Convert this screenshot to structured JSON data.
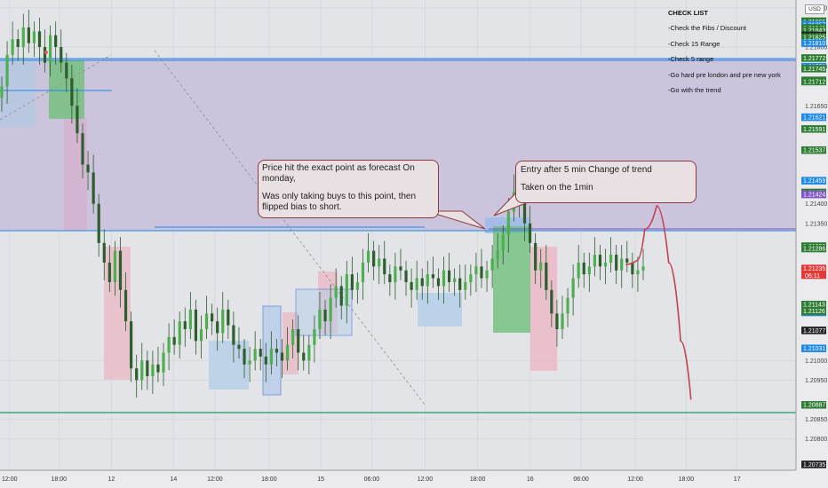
{
  "chart": {
    "currency": "USD",
    "colors": {
      "background": "#e3e4e8",
      "bullish": "#26a69a",
      "bearish": "#ef5350",
      "candle": "#3a7a3a",
      "forecast": "#c0424f",
      "level_line": "#1e88e5",
      "support_line": "#1b9a6b",
      "zone": "#c5bcd8",
      "ask_box": "#a8c7e6",
      "bid_box": "#e6a9b4"
    }
  },
  "checklist": {
    "title": "CHECK LIST",
    "items": [
      "-Check the Fibs / Discount",
      "-Check 15 Range",
      "-Check 5 range",
      "-Go hard pre london and pre new york",
      "-Go with the trend"
    ]
  },
  "callouts": {
    "left": {
      "line1": "Price hit the exact point as forecast On monday,",
      "line2": "Was only taking buys to this point,  then flipped bias to short."
    },
    "right": {
      "line1": "Entry after 5 min Change of trend",
      "line2": "Taken on the 1min"
    }
  },
  "chart_data": {
    "type": "candlestick",
    "y_range": [
      1.2072,
      1.2192
    ],
    "price_ticks": [
      1.208,
      1.2085,
      1.2095,
      1.21,
      1.2135,
      1.214,
      1.2165,
      1.2175,
      1.218,
      1.219
    ],
    "price_labels": [
      {
        "value": "1.21866",
        "price": 1.21866,
        "color": "#2e7d32"
      },
      {
        "value": "1.21865",
        "price": 1.21865,
        "color": "#2e7d32"
      },
      {
        "value": "1.21857",
        "price": 1.21857,
        "color": "#1e88e5"
      },
      {
        "value": "1.21849",
        "price": 1.21849,
        "color": "#2e7d32"
      },
      {
        "value": "1.21843",
        "price": 1.21843,
        "color": "#2e7d32"
      },
      {
        "value": "1.21830",
        "price": 1.2183,
        "color": "#222222"
      },
      {
        "value": "1.21825",
        "price": 1.21825,
        "color": "#2e7d32"
      },
      {
        "value": "1.21810",
        "price": 1.2181,
        "color": "#1e88e5"
      },
      {
        "value": "1.21772",
        "price": 1.21772,
        "color": "#2e7d32"
      },
      {
        "value": "1.21750",
        "price": 1.2175,
        "color": "#1e88e5"
      },
      {
        "value": "1.21745",
        "price": 1.21745,
        "color": "#2e7d32"
      },
      {
        "value": "1.21715",
        "price": 1.21715,
        "color": "#2e7d32"
      },
      {
        "value": "1.21712",
        "price": 1.21712,
        "color": "#2e7d32"
      },
      {
        "value": "1.21621",
        "price": 1.21621,
        "color": "#1e88e5"
      },
      {
        "value": "1.21591",
        "price": 1.21591,
        "color": "#2e7d32"
      },
      {
        "value": "1.21537",
        "price": 1.21537,
        "color": "#2e7d32"
      },
      {
        "value": "1.21459",
        "price": 1.21459,
        "color": "#1e88e5"
      },
      {
        "value": "1.21429",
        "price": 1.21429,
        "color": "#2e7d32"
      },
      {
        "value": "1.21424",
        "price": 1.21424,
        "color": "#7e57c2"
      },
      {
        "value": "1.21292",
        "price": 1.21292,
        "color": "#2e7d32"
      },
      {
        "value": "1.21286",
        "price": 1.21286,
        "color": "#2e7d32"
      },
      {
        "value": "1.21235",
        "price": 1.21235,
        "color": "#e53935",
        "sub": "06:11"
      },
      {
        "value": "1.21143",
        "price": 1.21143,
        "color": "#2e7d32"
      },
      {
        "value": "1.21123",
        "price": 1.21123,
        "color": "#1e88e5"
      },
      {
        "value": "1.21126",
        "price": 1.21126,
        "color": "#2e7d32"
      },
      {
        "value": "1.21077",
        "price": 1.21077,
        "color": "#222222"
      },
      {
        "value": "1.21031",
        "price": 1.21031,
        "color": "#1e88e5"
      },
      {
        "value": "1.20887",
        "price": 1.20887,
        "color": "#2e7d32"
      },
      {
        "value": "1.20735",
        "price": 1.20735,
        "color": "#222222"
      }
    ],
    "x_ticks": [
      {
        "label": "12:00",
        "t": 0.012
      },
      {
        "label": "18:00",
        "t": 0.074
      },
      {
        "label": "12",
        "t": 0.14
      },
      {
        "label": "14",
        "t": 0.218
      },
      {
        "label": "12:00",
        "t": 0.27
      },
      {
        "label": "18:00",
        "t": 0.338
      },
      {
        "label": "15",
        "t": 0.403
      },
      {
        "label": "06:00",
        "t": 0.467
      },
      {
        "label": "12:00",
        "t": 0.534
      },
      {
        "label": "18:00",
        "t": 0.6
      },
      {
        "label": "16",
        "t": 0.666
      },
      {
        "label": "06:00",
        "t": 0.73
      },
      {
        "label": "12:00",
        "t": 0.798
      },
      {
        "label": "18:00",
        "t": 0.862
      },
      {
        "label": "17",
        "t": 0.926
      }
    ],
    "levels": [
      {
        "price": 1.2184,
        "kind": "resistance"
      },
      {
        "price": 1.21424,
        "kind": "resistance"
      },
      {
        "price": 1.20887,
        "kind": "support"
      },
      {
        "price": 1.2145,
        "kind": "short_line"
      }
    ],
    "closes": [
      1.217,
      1.2178,
      1.2182,
      1.218,
      1.2185,
      1.2181,
      1.2184,
      1.218,
      1.2176,
      1.2183,
      1.218,
      1.2176,
      1.2172,
      1.2165,
      1.2158,
      1.215,
      1.2148,
      1.214,
      1.213,
      1.2125,
      1.212,
      1.2128,
      1.2118,
      1.211,
      1.2098,
      1.2095,
      1.21,
      1.2096,
      1.2099,
      1.2097,
      1.2102,
      1.2106,
      1.2104,
      1.211,
      1.2108,
      1.2113,
      1.2105,
      1.2108,
      1.2112,
      1.211,
      1.2107,
      1.2113,
      1.2109,
      1.2104,
      1.2103,
      1.2099,
      1.21,
      1.2103,
      1.2101,
      1.2099,
      1.2103,
      1.2102,
      1.21,
      1.2104,
      1.2108,
      1.2102,
      1.21,
      1.2104,
      1.2108,
      1.2113,
      1.211,
      1.2116,
      1.2119,
      1.2114,
      1.2122,
      1.2118,
      1.212,
      1.2125,
      1.2128,
      1.2124,
      1.2126,
      1.2122,
      1.212,
      1.2124,
      1.2123,
      1.212,
      1.2118,
      1.2121,
      1.2119,
      1.2122,
      1.2121,
      1.2119,
      1.2123,
      1.212,
      1.2121,
      1.2118,
      1.212,
      1.2122,
      1.2124,
      1.2121,
      1.2123,
      1.2126,
      1.2128,
      1.2132,
      1.2138,
      1.2143,
      1.214,
      1.2135,
      1.213,
      1.2123,
      1.2125,
      1.2118,
      1.2112,
      1.2108,
      1.2112,
      1.2116,
      1.2121,
      1.2125,
      1.2122,
      1.2124,
      1.2127,
      1.2124,
      1.2125,
      1.2127,
      1.2123,
      1.2126,
      1.2125,
      1.2122,
      1.2123,
      1.2124
    ],
    "forecast_path": [
      {
        "t": 0.786,
        "p": 1.21245
      },
      {
        "t": 0.8,
        "p": 1.21255
      },
      {
        "t": 0.81,
        "p": 1.21335
      },
      {
        "t": 0.825,
        "p": 1.21395
      },
      {
        "t": 0.84,
        "p": 1.2125
      },
      {
        "t": 0.855,
        "p": 1.2105
      },
      {
        "t": 0.868,
        "p": 1.209
      }
    ]
  }
}
